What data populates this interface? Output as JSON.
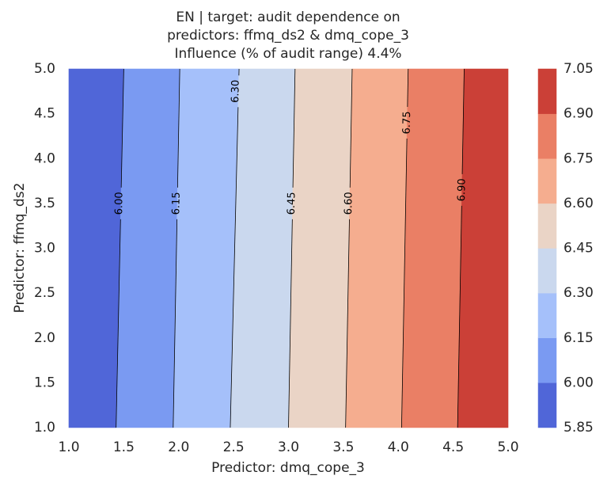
{
  "chart_data": {
    "type": "contour",
    "title_lines": [
      "EN | target: audit dependence on",
      "predictors: ffmq_ds2 & dmq_cope_3",
      "Influence (% of audit range) 4.4%"
    ],
    "xlabel": "Predictor: dmq_cope_3",
    "ylabel": "Predictor: ffmq_ds2",
    "xlim": [
      1.0,
      5.0
    ],
    "ylim": [
      1.0,
      5.0
    ],
    "x_ticks": [
      "1.0",
      "1.5",
      "2.0",
      "2.5",
      "3.0",
      "3.5",
      "4.0",
      "4.5",
      "5.0"
    ],
    "y_ticks": [
      "1.0",
      "1.5",
      "2.0",
      "2.5",
      "3.0",
      "3.5",
      "4.0",
      "4.5",
      "5.0"
    ],
    "colorbar_levels": [
      "5.85",
      "6.00",
      "6.15",
      "6.30",
      "6.45",
      "6.60",
      "6.75",
      "6.90",
      "7.05"
    ],
    "band_colors": [
      "#5066d8",
      "#7a9af2",
      "#a5c0fa",
      "#cad8ee",
      "#ead4c6",
      "#f5ad8f",
      "#ea7f65",
      "#cb4037"
    ],
    "contours": [
      {
        "level": 6.0,
        "label": "6.00",
        "x_at_y1": 1.43,
        "x_at_y5": 1.5,
        "label_x": 1.46,
        "label_y": 3.5
      },
      {
        "level": 6.15,
        "label": "6.15",
        "x_at_y1": 1.95,
        "x_at_y5": 2.01,
        "label_x": 1.98,
        "label_y": 3.5
      },
      {
        "level": 6.3,
        "label": "6.30",
        "x_at_y1": 2.47,
        "x_at_y5": 2.55,
        "label_x": 2.52,
        "label_y": 4.75
      },
      {
        "level": 6.45,
        "label": "6.45",
        "x_at_y1": 3.0,
        "x_at_y5": 3.06,
        "label_x": 3.03,
        "label_y": 3.5
      },
      {
        "level": 6.6,
        "label": "6.60",
        "x_at_y1": 3.52,
        "x_at_y5": 3.58,
        "label_x": 3.55,
        "label_y": 3.5
      },
      {
        "level": 6.75,
        "label": "6.75",
        "x_at_y1": 4.03,
        "x_at_y5": 4.09,
        "label_x": 4.08,
        "label_y": 4.4
      },
      {
        "level": 6.9,
        "label": "6.90",
        "x_at_y1": 4.54,
        "x_at_y5": 4.6,
        "label_x": 4.58,
        "label_y": 3.65
      }
    ],
    "grid": false,
    "colorbar": "right"
  }
}
